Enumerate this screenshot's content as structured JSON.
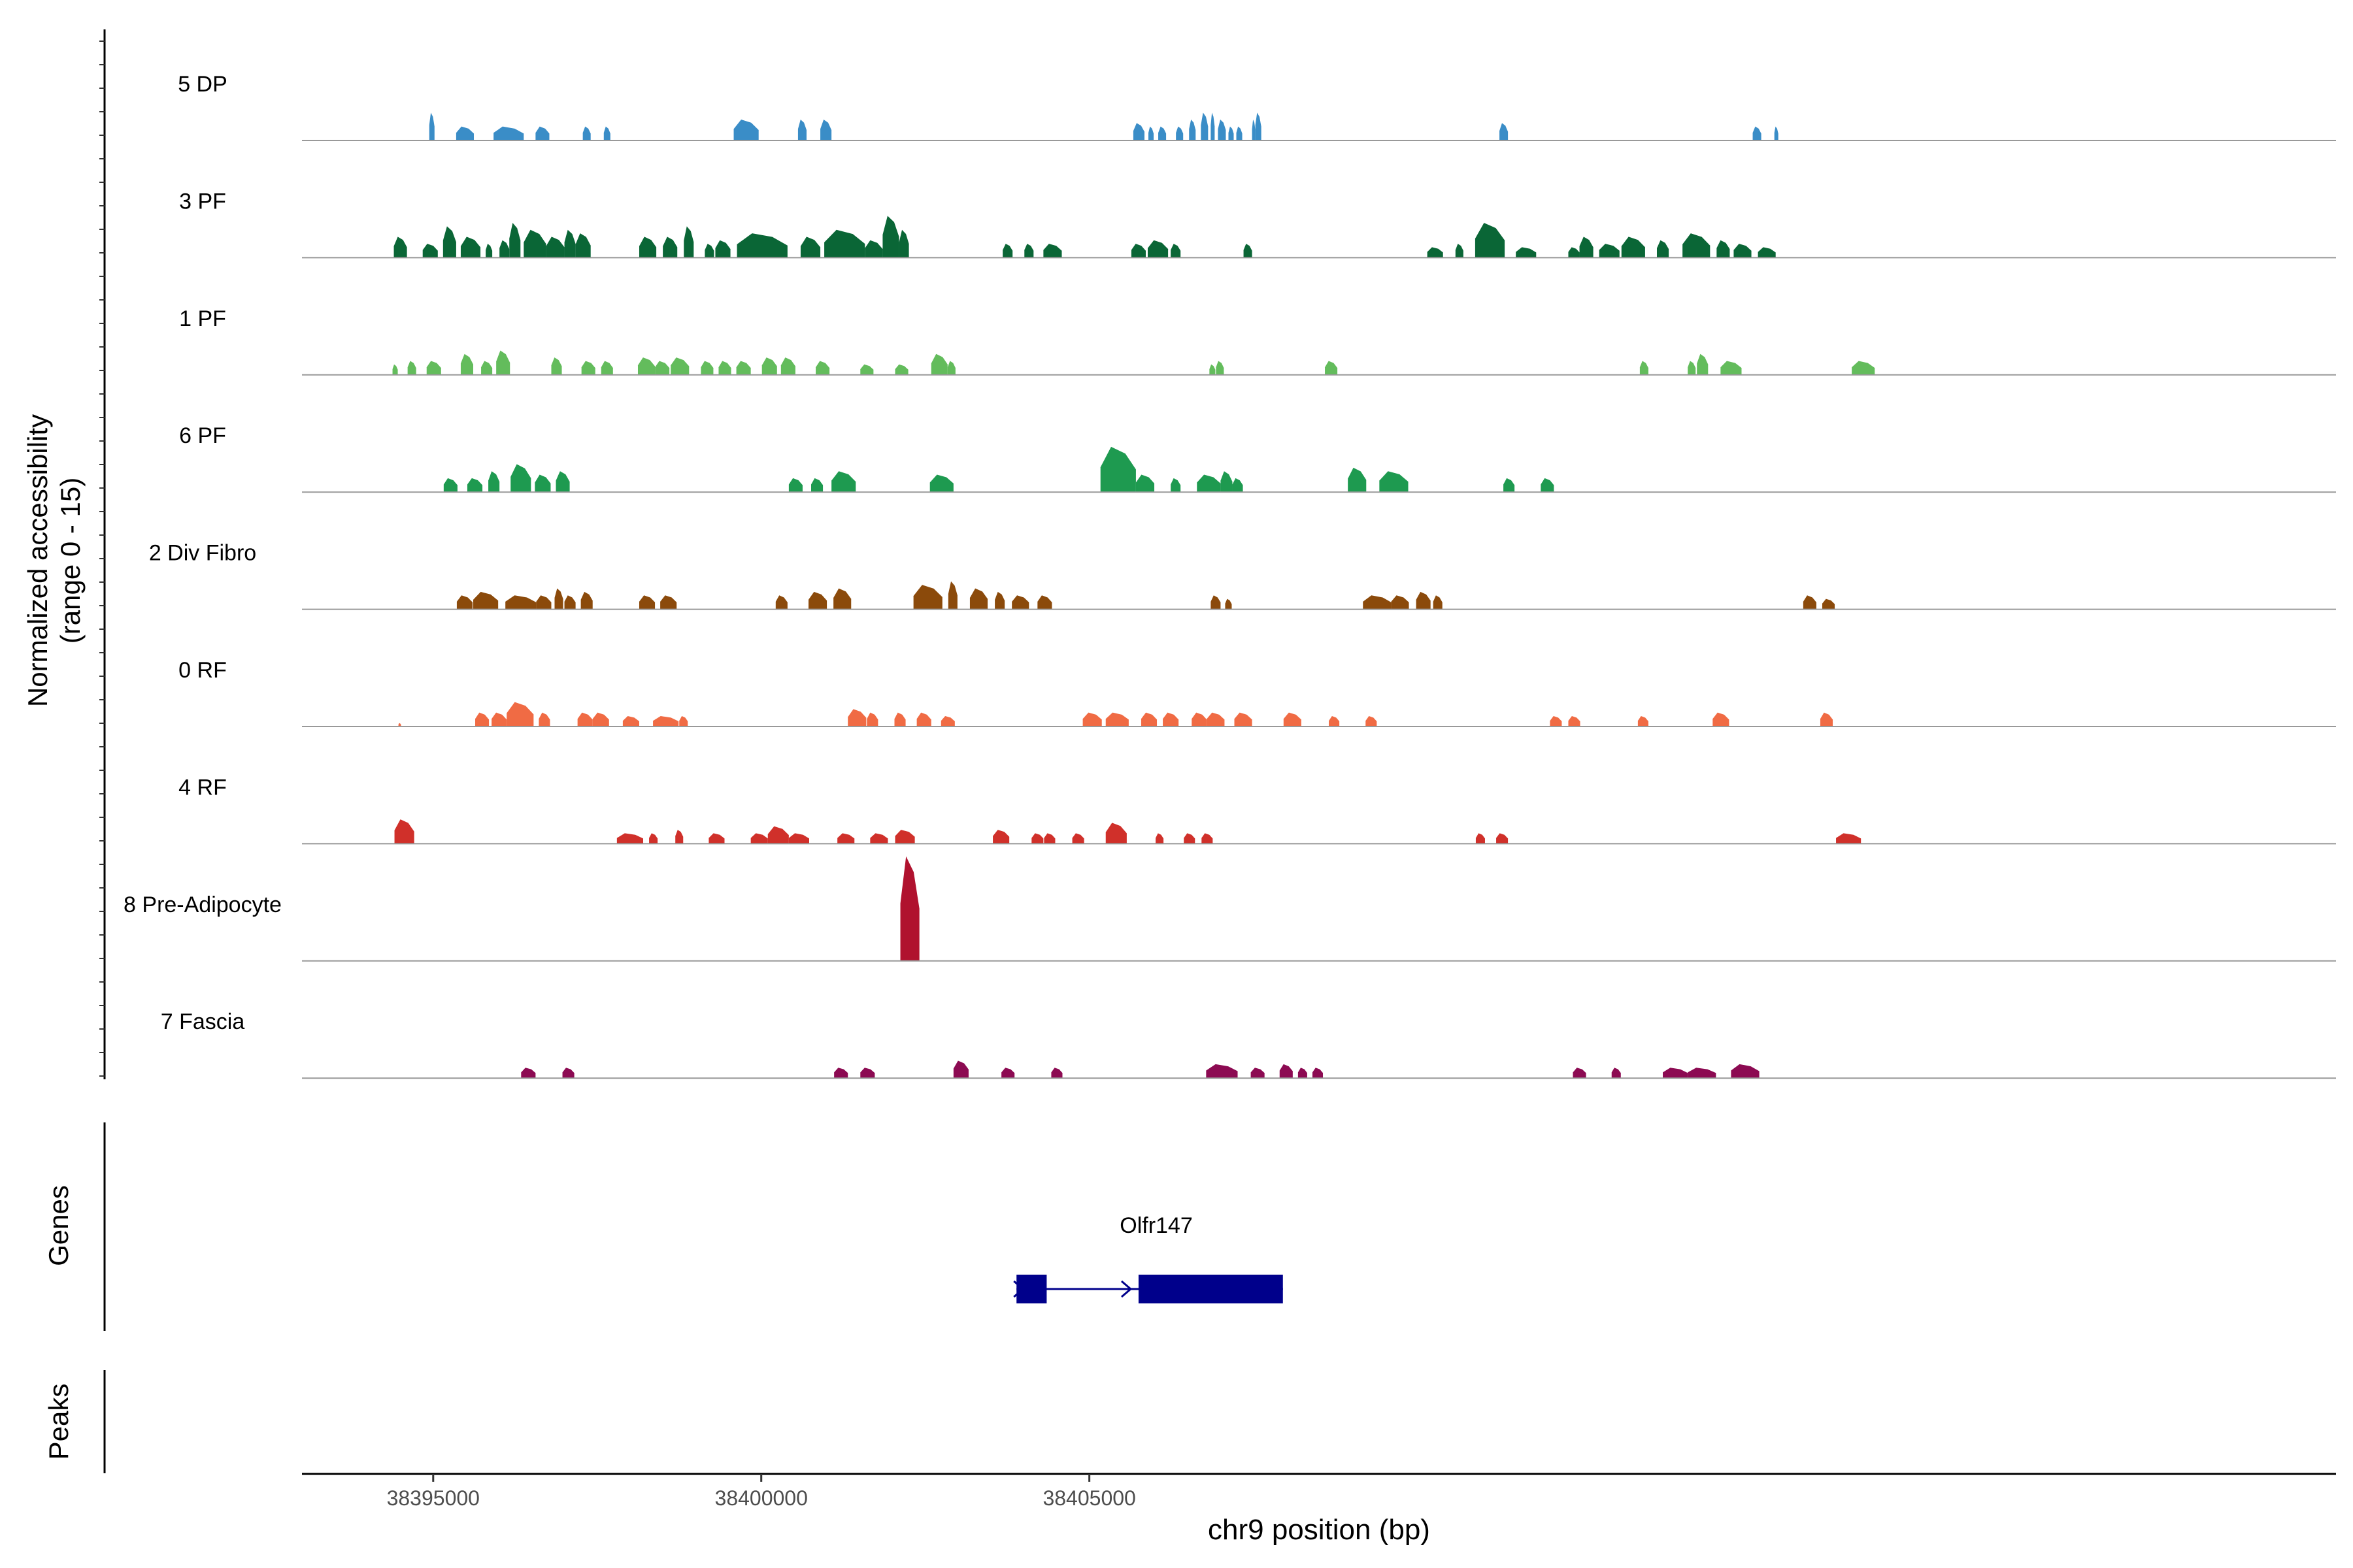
{
  "chart_data": {
    "type": "area",
    "title": "",
    "region": "chr9",
    "xlabel": "chr9 position (bp)",
    "ylabel": "Normalized accessibility",
    "ylabel_range": "(range 0 - 15)",
    "ylim": [
      0,
      15
    ],
    "xlim": [
      38393000,
      38424000
    ],
    "xticks": [
      38395000,
      38400000,
      38405000
    ],
    "xtick_labels": [
      "38395000",
      "38400000",
      "38405000"
    ],
    "panel_labels": {
      "genes": "Genes",
      "peaks": "Peaks"
    },
    "series": [
      {
        "name": "5 DP",
        "color": "#3A8DC7",
        "peaks": [
          [
            38394940,
            38395020,
            4
          ],
          [
            38395350,
            38395620,
            2
          ],
          [
            38395920,
            38396380,
            2
          ],
          [
            38396560,
            38396770,
            2
          ],
          [
            38397280,
            38397400,
            2
          ],
          [
            38397600,
            38397700,
            2
          ],
          [
            38399580,
            38399960,
            3
          ],
          [
            38400560,
            38400690,
            3
          ],
          [
            38400900,
            38401070,
            3
          ],
          [
            38405670,
            38405840,
            2.5
          ],
          [
            38405900,
            38405980,
            2
          ],
          [
            38406050,
            38406170,
            2
          ],
          [
            38406320,
            38406430,
            2
          ],
          [
            38406520,
            38406620,
            3
          ],
          [
            38406700,
            38406810,
            4
          ],
          [
            38406850,
            38406910,
            4
          ],
          [
            38406960,
            38407080,
            3
          ],
          [
            38407120,
            38407200,
            2
          ],
          [
            38407240,
            38407330,
            2
          ],
          [
            38407480,
            38407530,
            3
          ],
          [
            38407530,
            38407620,
            4
          ],
          [
            38411250,
            38411380,
            2.5
          ],
          [
            38415110,
            38415240,
            2
          ],
          [
            38415440,
            38415500,
            2
          ]
        ]
      },
      {
        "name": "3 PF",
        "color": "#0A6636",
        "peaks": [
          [
            38394400,
            38394600,
            3
          ],
          [
            38394840,
            38395070,
            2
          ],
          [
            38395150,
            38395350,
            4.5
          ],
          [
            38395420,
            38395720,
            3
          ],
          [
            38395800,
            38395900,
            2
          ],
          [
            38396010,
            38396160,
            2.5
          ],
          [
            38396160,
            38396330,
            5
          ],
          [
            38396380,
            38396720,
            4
          ],
          [
            38396720,
            38397000,
            3
          ],
          [
            38397000,
            38397170,
            4
          ],
          [
            38397170,
            38397400,
            3.5
          ],
          [
            38398140,
            38398400,
            3
          ],
          [
            38398500,
            38398720,
            3
          ],
          [
            38398820,
            38398970,
            4.5
          ],
          [
            38399140,
            38399280,
            2
          ],
          [
            38399300,
            38399530,
            2.5
          ],
          [
            38399630,
            38400400,
            3.5
          ],
          [
            38400600,
            38400900,
            3
          ],
          [
            38400960,
            38401580,
            4
          ],
          [
            38401580,
            38401850,
            2.5
          ],
          [
            38401850,
            38402100,
            6
          ],
          [
            38402100,
            38402250,
            4
          ],
          [
            38403680,
            38403830,
            2
          ],
          [
            38404010,
            38404150,
            2
          ],
          [
            38404300,
            38404580,
            2
          ],
          [
            38405640,
            38405860,
            2
          ],
          [
            38405890,
            38406200,
            2.5
          ],
          [
            38406240,
            38406390,
            2
          ],
          [
            38407350,
            38407480,
            2
          ],
          [
            38410150,
            38410390,
            1.5
          ],
          [
            38410580,
            38410700,
            2
          ],
          [
            38410880,
            38411330,
            5
          ],
          [
            38411500,
            38411810,
            1.5
          ],
          [
            38412300,
            38412470,
            1.5
          ],
          [
            38412470,
            38412680,
            3
          ],
          [
            38412770,
            38413080,
            2
          ],
          [
            38413110,
            38413470,
            3
          ],
          [
            38413650,
            38413830,
            2.5
          ],
          [
            38414040,
            38414460,
            3.5
          ],
          [
            38414560,
            38414760,
            2.5
          ],
          [
            38414820,
            38415090,
            2
          ],
          [
            38415190,
            38415460,
            1.5
          ]
        ]
      },
      {
        "name": "1 PF",
        "color": "#63BC5C",
        "peaks": [
          [
            38394380,
            38394460,
            1.5
          ],
          [
            38394610,
            38394740,
            2
          ],
          [
            38394900,
            38395120,
            2
          ],
          [
            38395420,
            38395610,
            3
          ],
          [
            38395730,
            38395900,
            2
          ],
          [
            38395960,
            38396170,
            3.5
          ],
          [
            38396800,
            38396960,
            2.5
          ],
          [
            38397260,
            38397470,
            2
          ],
          [
            38397560,
            38397740,
            2
          ],
          [
            38398120,
            38398380,
            2.5
          ],
          [
            38398380,
            38398600,
            2
          ],
          [
            38398620,
            38398900,
            2.5
          ],
          [
            38399080,
            38399270,
            2
          ],
          [
            38399350,
            38399540,
            2
          ],
          [
            38399620,
            38399840,
            2
          ],
          [
            38400010,
            38400240,
            2.5
          ],
          [
            38400300,
            38400520,
            2.5
          ],
          [
            38400830,
            38401040,
            2
          ],
          [
            38401510,
            38401710,
            1.5
          ],
          [
            38402040,
            38402240,
            1.5
          ],
          [
            38402590,
            38402840,
            3
          ],
          [
            38402840,
            38402960,
            2
          ],
          [
            38406830,
            38406920,
            1.5
          ],
          [
            38406930,
            38407050,
            2
          ],
          [
            38408590,
            38408780,
            2
          ],
          [
            38413390,
            38413520,
            2
          ],
          [
            38414120,
            38414240,
            2
          ],
          [
            38414260,
            38414430,
            3
          ],
          [
            38414620,
            38414940,
            2
          ],
          [
            38416620,
            38416970,
            2
          ]
        ]
      },
      {
        "name": "6 PF",
        "color": "#1E9A50",
        "peaks": [
          [
            38395160,
            38395370,
            2
          ],
          [
            38395520,
            38395750,
            2
          ],
          [
            38395840,
            38396010,
            3
          ],
          [
            38396180,
            38396490,
            4
          ],
          [
            38396550,
            38396790,
            2.5
          ],
          [
            38396870,
            38397080,
            3
          ],
          [
            38400420,
            38400630,
            2
          ],
          [
            38400760,
            38400940,
            2
          ],
          [
            38401070,
            38401440,
            3
          ],
          [
            38402570,
            38402930,
            2.5
          ],
          [
            38405170,
            38405710,
            6.5
          ],
          [
            38405710,
            38405990,
            2.5
          ],
          [
            38406240,
            38406390,
            2
          ],
          [
            38406640,
            38407000,
            2.5
          ],
          [
            38407000,
            38407180,
            3
          ],
          [
            38407180,
            38407340,
            2
          ],
          [
            38408940,
            38409220,
            3.5
          ],
          [
            38409420,
            38409860,
            3
          ],
          [
            38411310,
            38411480,
            2
          ],
          [
            38411880,
            38412080,
            2
          ]
        ]
      },
      {
        "name": "2 Div Fibro",
        "color": "#8B4A0B",
        "peaks": [
          [
            38395360,
            38395600,
            2
          ],
          [
            38395610,
            38395990,
            2.5
          ],
          [
            38396100,
            38396570,
            2
          ],
          [
            38396570,
            38396800,
            2
          ],
          [
            38396850,
            38396980,
            3
          ],
          [
            38397000,
            38397170,
            2
          ],
          [
            38397250,
            38397430,
            2.5
          ],
          [
            38398140,
            38398380,
            2
          ],
          [
            38398460,
            38398710,
            2
          ],
          [
            38400220,
            38400400,
            2
          ],
          [
            38400720,
            38401000,
            2.5
          ],
          [
            38401100,
            38401370,
            3
          ],
          [
            38402320,
            38402760,
            3.5
          ],
          [
            38402850,
            38402990,
            4
          ],
          [
            38403180,
            38403450,
            3
          ],
          [
            38403560,
            38403710,
            2.5
          ],
          [
            38403820,
            38404080,
            2
          ],
          [
            38404210,
            38404430,
            2
          ],
          [
            38406850,
            38407000,
            2
          ],
          [
            38407070,
            38407170,
            1.5
          ],
          [
            38409170,
            38409600,
            2
          ],
          [
            38409600,
            38409870,
            2
          ],
          [
            38409980,
            38410200,
            2.5
          ],
          [
            38410240,
            38410380,
            2
          ],
          [
            38415880,
            38416080,
            2
          ],
          [
            38416170,
            38416360,
            1.5
          ]
        ]
      },
      {
        "name": "0 RF",
        "color": "#F06B44",
        "peaks": [
          [
            38394470,
            38394510,
            0.5
          ],
          [
            38395640,
            38395850,
            2
          ],
          [
            38395890,
            38396120,
            2
          ],
          [
            38396120,
            38396530,
            3.5
          ],
          [
            38396610,
            38396780,
            2
          ],
          [
            38397200,
            38397430,
            2
          ],
          [
            38397430,
            38397680,
            2
          ],
          [
            38397890,
            38398140,
            1.5
          ],
          [
            38398350,
            38398740,
            1.5
          ],
          [
            38398750,
            38398880,
            1.5
          ],
          [
            38401320,
            38401600,
            2.5
          ],
          [
            38401610,
            38401780,
            2
          ],
          [
            38402030,
            38402200,
            2
          ],
          [
            38402370,
            38402590,
            2
          ],
          [
            38402740,
            38402950,
            1.5
          ],
          [
            38404900,
            38405190,
            2
          ],
          [
            38405250,
            38405600,
            2
          ],
          [
            38405790,
            38406030,
            2
          ],
          [
            38406120,
            38406360,
            2
          ],
          [
            38406560,
            38406790,
            2
          ],
          [
            38406790,
            38407060,
            2
          ],
          [
            38407210,
            38407480,
            2
          ],
          [
            38407960,
            38408230,
            2
          ],
          [
            38408650,
            38408810,
            1.5
          ],
          [
            38409210,
            38409380,
            1.5
          ],
          [
            38412020,
            38412200,
            1.5
          ],
          [
            38412300,
            38412480,
            1.5
          ],
          [
            38413360,
            38413520,
            1.5
          ],
          [
            38414500,
            38414750,
            2
          ],
          [
            38416140,
            38416330,
            2
          ]
        ]
      },
      {
        "name": "4 RF",
        "color": "#D0302A",
        "peaks": [
          [
            38394410,
            38394710,
            3.5
          ],
          [
            38397800,
            38398200,
            1.5
          ],
          [
            38398290,
            38398420,
            1.5
          ],
          [
            38398690,
            38398810,
            2
          ],
          [
            38399200,
            38399440,
            1.5
          ],
          [
            38399840,
            38400100,
            1.5
          ],
          [
            38400100,
            38400420,
            2.5
          ],
          [
            38400420,
            38400730,
            1.5
          ],
          [
            38401160,
            38401420,
            1.5
          ],
          [
            38401660,
            38401930,
            1.5
          ],
          [
            38402040,
            38402340,
            2
          ],
          [
            38403530,
            38403780,
            2
          ],
          [
            38404120,
            38404300,
            1.5
          ],
          [
            38404310,
            38404480,
            1.5
          ],
          [
            38404740,
            38404920,
            1.5
          ],
          [
            38405250,
            38405570,
            3
          ],
          [
            38406010,
            38406130,
            1.5
          ],
          [
            38406440,
            38406610,
            1.5
          ],
          [
            38406710,
            38406880,
            1.5
          ],
          [
            38410890,
            38411030,
            1.5
          ],
          [
            38411200,
            38411380,
            1.5
          ],
          [
            38416380,
            38416760,
            1.5
          ]
        ]
      },
      {
        "name": "8 Pre-Adipocyte",
        "color": "#B0122E",
        "peaks": [
          [
            38402120,
            38402410,
            15
          ]
        ]
      },
      {
        "name": "7 Fascia",
        "color": "#8C0A52",
        "peaks": [
          [
            38396340,
            38396560,
            1.5
          ],
          [
            38396970,
            38397150,
            1.5
          ],
          [
            38401110,
            38401320,
            1.5
          ],
          [
            38401510,
            38401730,
            1.5
          ],
          [
            38402930,
            38403160,
            2.5
          ],
          [
            38403660,
            38403860,
            1.5
          ],
          [
            38404420,
            38404590,
            1.5
          ],
          [
            38406780,
            38407260,
            2
          ],
          [
            38407460,
            38407670,
            1.5
          ],
          [
            38407900,
            38408100,
            2
          ],
          [
            38408180,
            38408320,
            1.5
          ],
          [
            38408400,
            38408560,
            1.5
          ],
          [
            38412370,
            38412570,
            1.5
          ],
          [
            38412960,
            38413100,
            1.5
          ],
          [
            38413740,
            38414120,
            1.5
          ],
          [
            38414120,
            38414550,
            1.5
          ],
          [
            38414780,
            38415210,
            2
          ]
        ]
      }
    ],
    "genes": [
      {
        "name": "Olfr147",
        "strand": "+",
        "color": "#00008B",
        "start": 38403890,
        "end": 38407950,
        "exons": [
          [
            38403890,
            38404350
          ],
          [
            38405750,
            38407950
          ]
        ]
      }
    ],
    "peaks_track": []
  }
}
